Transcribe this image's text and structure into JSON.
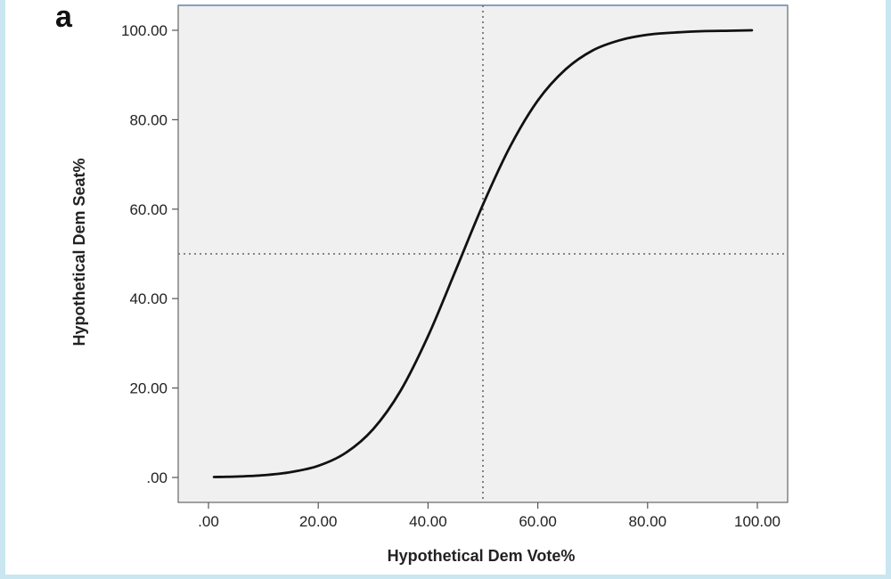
{
  "panel_label": "a",
  "chart_data": {
    "type": "line",
    "title": "",
    "xlabel": "Hypothetical Dem Vote%",
    "ylabel": "Hypothetical Dem Seat%",
    "xlim": [
      0,
      100
    ],
    "ylim": [
      -3,
      105
    ],
    "xticks": [
      0,
      20,
      40,
      60,
      80,
      100
    ],
    "xtick_labels": [
      ".00",
      "20.00",
      "40.00",
      "60.00",
      "80.00",
      "100.00"
    ],
    "yticks": [
      0,
      20,
      40,
      60,
      80,
      100
    ],
    "ytick_labels": [
      ".00",
      "20.00",
      "40.00",
      "60.00",
      "80.00",
      "100.00"
    ],
    "reference_lines": {
      "x": 50,
      "y": 50,
      "style": "dotted"
    },
    "grid": false,
    "background": "#f0f0f0",
    "line_color": "#111111",
    "series": [
      {
        "x": [
          1,
          5,
          10,
          15,
          20,
          25,
          30,
          35,
          40,
          45,
          50,
          55,
          60,
          65,
          70,
          75,
          80,
          85,
          90,
          95,
          99
        ],
        "y": [
          0.1,
          0.2,
          0.5,
          1.2,
          2.6,
          5.5,
          10.8,
          19.4,
          31.6,
          46.2,
          61,
          74.1,
          84.3,
          91.2,
          95.5,
          97.8,
          99,
          99.5,
          99.8,
          99.9,
          100
        ]
      }
    ]
  }
}
